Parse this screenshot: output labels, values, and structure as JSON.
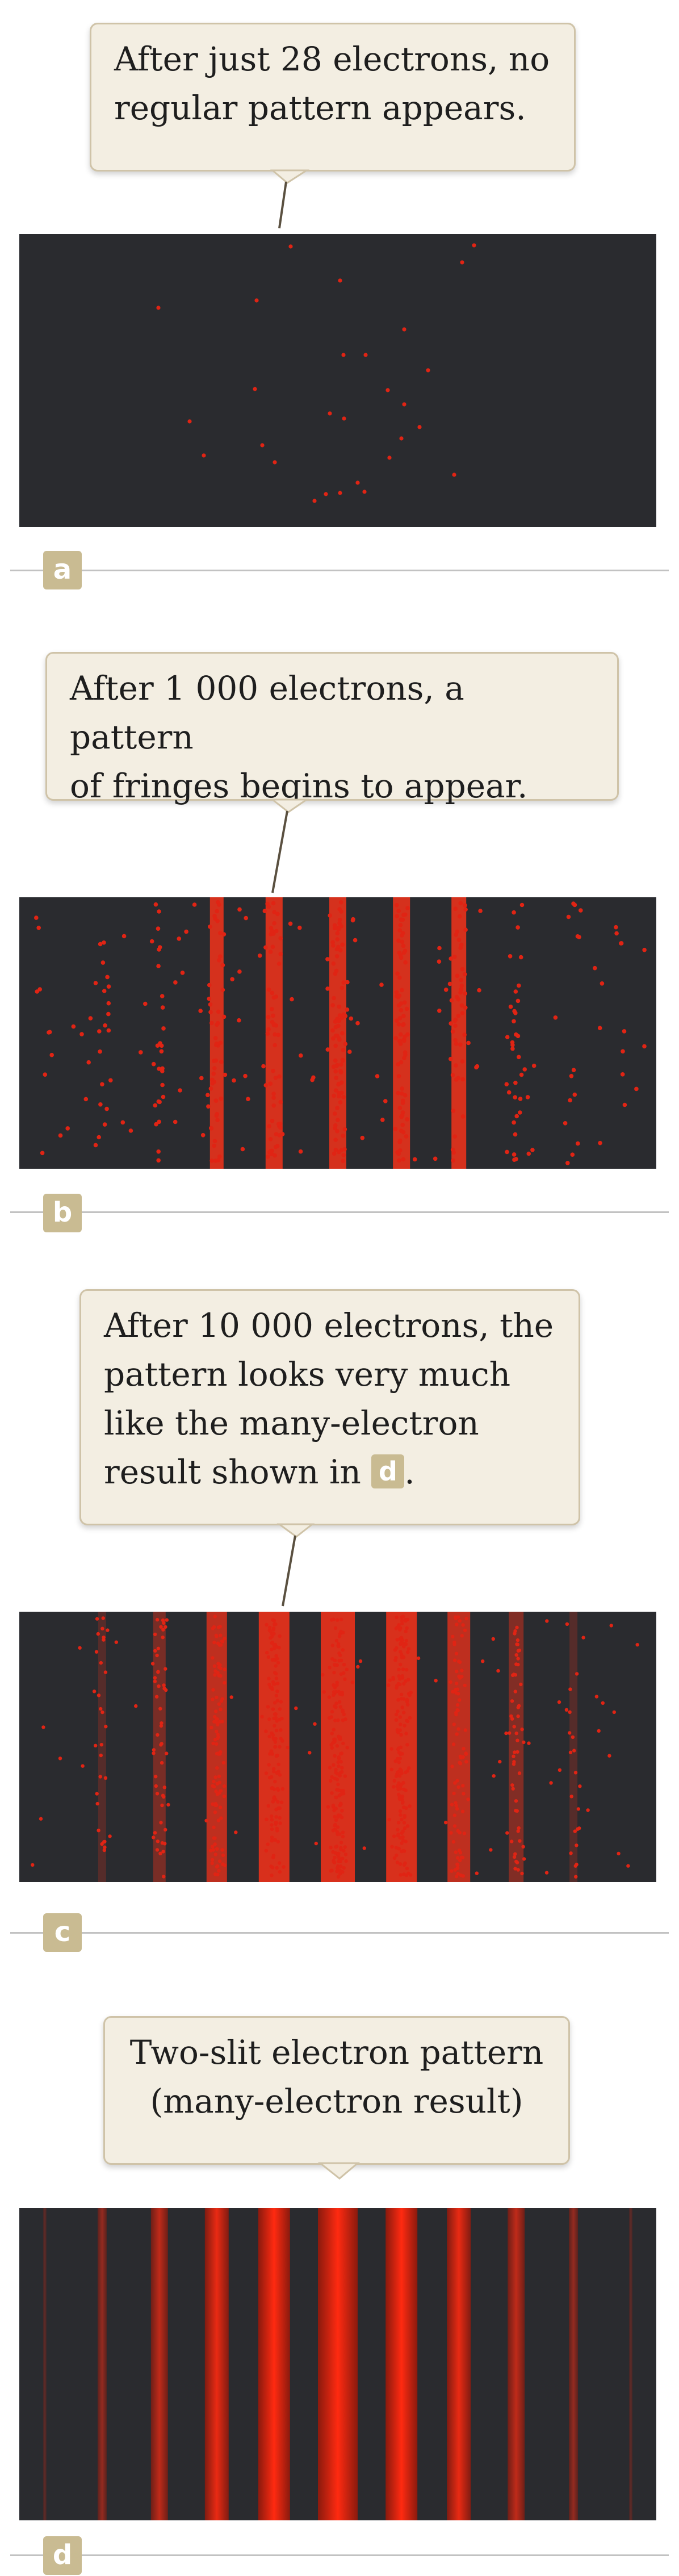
{
  "callouts": {
    "a": {
      "line1": "After just 28 electrons, no",
      "line2": "regular pattern appears."
    },
    "b": {
      "line1": "After 1 000 electrons, a pattern",
      "line2": "of fringes begins to appear."
    },
    "c": {
      "line1": "After 10 000 electrons, the",
      "line2": "pattern looks very much",
      "line3": "like the many-electron",
      "line4": "result shown in",
      "ref": "d",
      "tail": "."
    },
    "d": {
      "line1": "Two-slit electron pattern",
      "line2": "(many-electron result)"
    }
  },
  "panel_labels": {
    "a": "a",
    "b": "b",
    "c": "c",
    "d": "d"
  },
  "electron_counts": {
    "a": 28,
    "b": 1000,
    "c": 10000
  },
  "colors": {
    "screen": "#2a2b2f",
    "electron": "#e02414",
    "callout_bg": "#f3eee2",
    "callout_border": "#cfc3a8",
    "badge": "#c9bb92"
  }
}
